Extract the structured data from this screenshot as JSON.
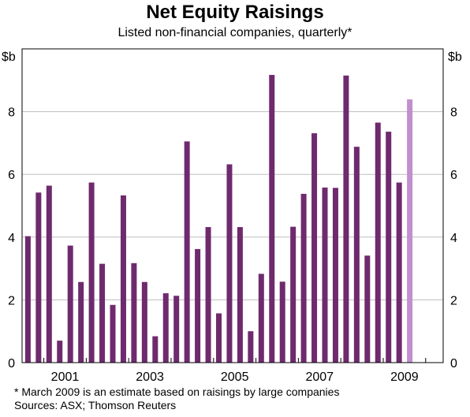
{
  "chart_data": {
    "type": "bar",
    "title": "Net Equity Raisings",
    "subtitle": "Listed non-financial companies, quarterly*",
    "ylabel_left": "$b",
    "ylabel_right": "$b",
    "ylim": [
      0,
      10
    ],
    "yticks": [
      0,
      2,
      4,
      6,
      8
    ],
    "xtick_labels": [
      "2001",
      "2003",
      "2005",
      "2007",
      "2009"
    ],
    "grid": true,
    "series": [
      {
        "values": [
          4.03,
          5.42,
          5.64,
          0.7,
          3.73,
          2.57,
          5.74,
          3.15,
          1.84,
          5.33,
          3.17,
          2.57,
          0.84,
          2.21,
          2.13,
          7.05,
          3.62,
          4.32,
          1.57,
          6.32,
          4.32,
          1.0,
          2.83,
          9.17,
          2.58,
          4.33,
          5.38,
          7.31,
          5.58,
          5.57,
          9.15,
          6.88,
          3.41,
          7.65,
          7.36,
          5.74,
          8.39
        ],
        "colors": {
          "actual": "#6f2a6e",
          "estimate": "#c18fcf"
        }
      }
    ],
    "estimate_index": 36,
    "footnotes": [
      "*   March 2009 is an estimate based on raisings by large companies",
      "Sources: ASX; Thomson Reuters"
    ]
  }
}
